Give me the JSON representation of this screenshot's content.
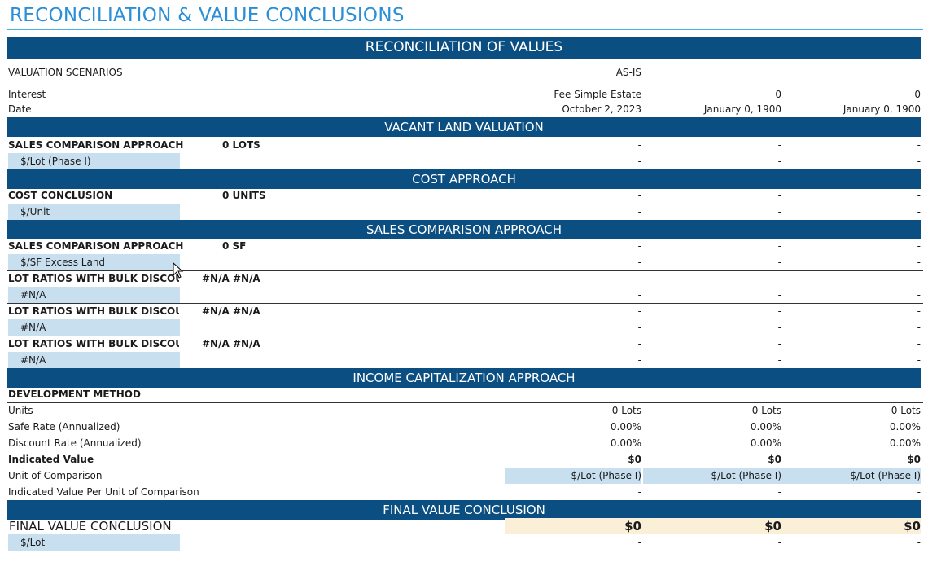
{
  "page_title": "RECONCILIATION & VALUE CONCLUSIONS",
  "banner_reconciliation": "RECONCILIATION OF VALUES",
  "scenarios": {
    "label": "VALUATION SCENARIOS",
    "col1": "AS-IS"
  },
  "interest": {
    "label": "Interest",
    "col1": "Fee Simple Estate",
    "col2": "0",
    "col3": "0"
  },
  "date": {
    "label": "Date",
    "col1": "October 2, 2023",
    "col2": "January 0, 1900",
    "col3": "January 0, 1900"
  },
  "vacant_land": {
    "header": "VACANT LAND VALUATION",
    "label": "SALES COMPARISON APPROACH",
    "qty": "0 LOTS",
    "values": [
      "-",
      "-",
      "-"
    ],
    "sub_label": "$/Lot (Phase I)",
    "sub_values": [
      "-",
      "-",
      "-"
    ]
  },
  "cost": {
    "header": "COST APPROACH",
    "label": "COST CONCLUSION",
    "qty": "0 UNITS",
    "values": [
      "-",
      "-",
      "-"
    ],
    "sub_label": "$/Unit",
    "sub_values": [
      "-",
      "-",
      "-"
    ]
  },
  "sales": {
    "header": "SALES COMPARISON APPROACH",
    "label": "SALES COMPARISON APPROACH",
    "qty": "0 SF",
    "values": [
      "-",
      "-",
      "-"
    ],
    "sub_label": "$/SF Excess Land",
    "sub_values": [
      "-",
      "-",
      "-"
    ]
  },
  "lot_ratios": [
    {
      "label": "LOT RATIOS WITH BULK DISCOUNT",
      "qty": "#N/A #N/A",
      "values": [
        "-",
        "-",
        "-"
      ],
      "sub_label": "#N/A",
      "sub_values": [
        "-",
        "-",
        "-"
      ]
    },
    {
      "label": "LOT RATIOS WITH BULK DISCOUNT",
      "qty": "#N/A #N/A",
      "values": [
        "-",
        "-",
        "-"
      ],
      "sub_label": "#N/A",
      "sub_values": [
        "-",
        "-",
        "-"
      ]
    },
    {
      "label": "LOT RATIOS WITH BULK DISCOUNT",
      "qty": "#N/A #N/A",
      "values": [
        "-",
        "-",
        "-"
      ],
      "sub_label": "#N/A",
      "sub_values": [
        "-",
        "-",
        "-"
      ]
    }
  ],
  "income": {
    "header": "INCOME CAPITALIZATION APPROACH",
    "method": "DEVELOPMENT METHOD",
    "rows": [
      {
        "label": "Units",
        "values": [
          "0 Lots",
          "0 Lots",
          "0 Lots"
        ]
      },
      {
        "label": "Safe Rate (Annualized)",
        "values": [
          "0.00%",
          "0.00%",
          "0.00%"
        ]
      },
      {
        "label": "Discount Rate (Annualized)",
        "values": [
          "0.00%",
          "0.00%",
          "0.00%"
        ]
      },
      {
        "label": "Indicated Value",
        "values": [
          "$0",
          "$0",
          "$0"
        ]
      },
      {
        "label": "Unit of Comparison",
        "values": [
          "$/Lot (Phase I)",
          "$/Lot (Phase I)",
          "$/Lot (Phase I)"
        ]
      },
      {
        "label": "Indicated Value Per Unit of Comparison",
        "values": [
          "-",
          "-",
          "-"
        ]
      }
    ]
  },
  "final": {
    "header": "FINAL VALUE CONCLUSION",
    "label": "FINAL VALUE CONCLUSION",
    "values": [
      "$0",
      "$0",
      "$0"
    ],
    "sub_label": "$/Lot",
    "sub_values": [
      "-",
      "-",
      "-"
    ]
  },
  "colors": {
    "banner": "#0b4f82",
    "title": "#2a8fd6",
    "highlight_blue": "#c8dff0",
    "highlight_peach": "#fcefd8"
  },
  "icons": {
    "cursor": "mouse-pointer-icon"
  }
}
